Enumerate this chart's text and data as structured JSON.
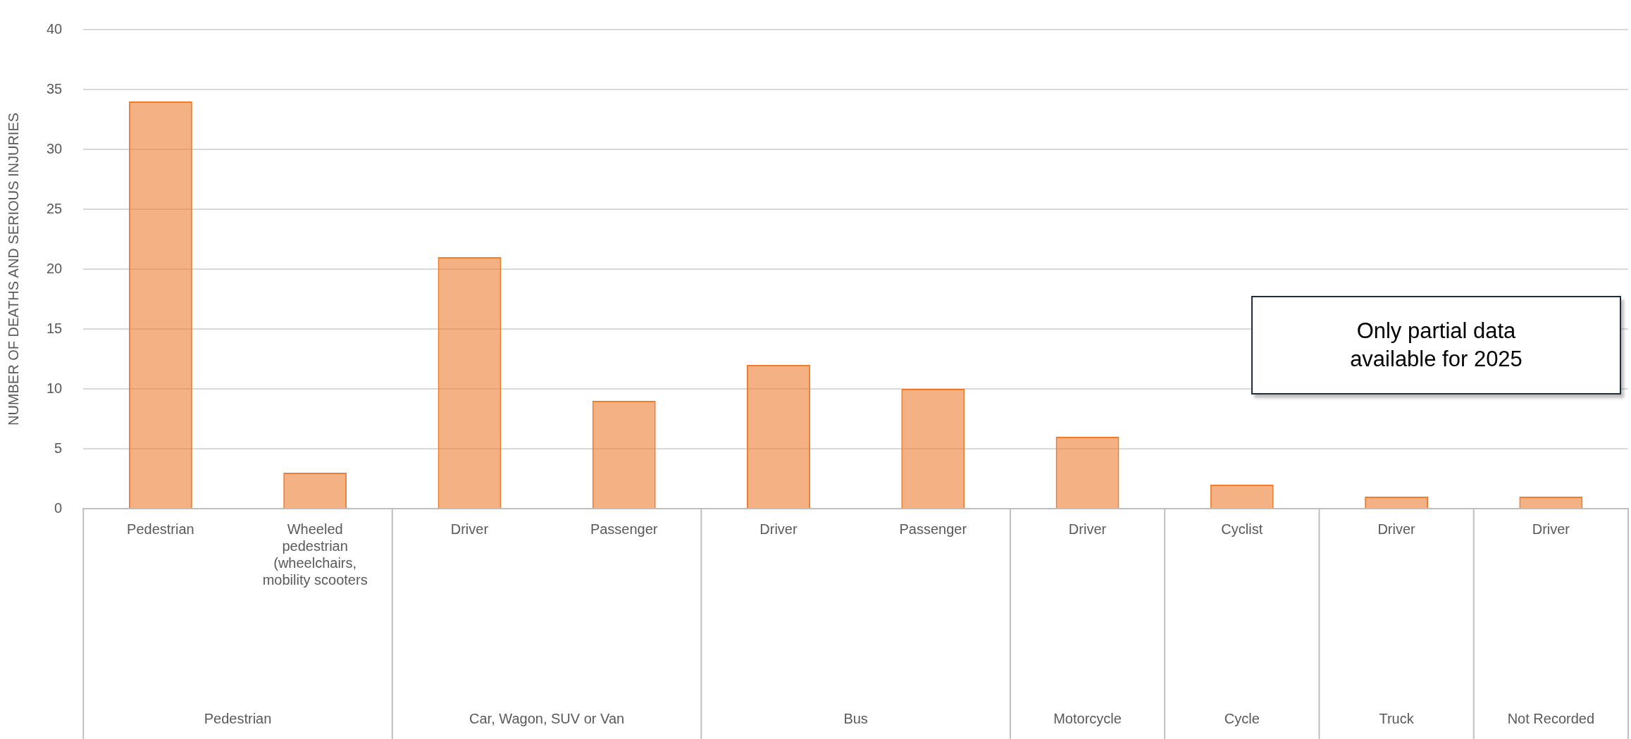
{
  "chart_data": {
    "type": "bar",
    "ylabel": "NUMBER OF DEATHS AND SERIOUS INJURIES",
    "categories": [
      "Pedestrian",
      "Wheeled pedestrian (wheelchairs, mobility scooters",
      "Driver",
      "Passenger",
      "Driver",
      "Passenger",
      "Driver",
      "Cyclist",
      "Driver",
      "Driver"
    ],
    "values": [
      34,
      3,
      21,
      9,
      12,
      10,
      6,
      2,
      1,
      1
    ],
    "color": "#ed7d31",
    "ylim": [
      0,
      40
    ],
    "yticks": [
      0,
      5,
      10,
      15,
      20,
      25,
      30,
      35,
      40
    ],
    "grid": "y",
    "legend": false,
    "annotations": [
      "Pedestrian",
      "Car, Wagon, SUV or Van",
      "Bus",
      "Motorcycle",
      "Cycle",
      "Truck",
      "Not Recorded",
      "Only partial data available for 2025"
    ]
  }
}
